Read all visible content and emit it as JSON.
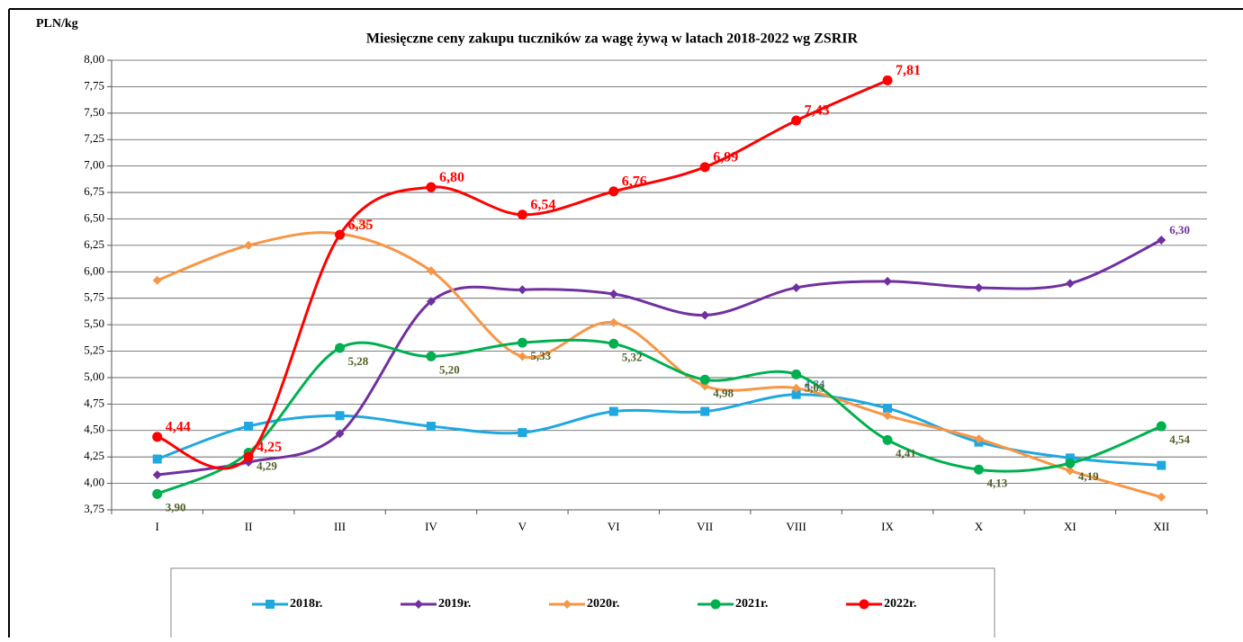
{
  "chart_data": {
    "type": "line",
    "title": "Miesięczne ceny zakupu tuczników za wagę żywą w latach 2018-2022 wg ZSRIR",
    "y_label": "PLN/kg",
    "categories": [
      "I",
      "II",
      "III",
      "IV",
      "V",
      "VI",
      "VII",
      "VIII",
      "IX",
      "X",
      "XI",
      "XII"
    ],
    "ylim": [
      3.75,
      8.0
    ],
    "yticks": [
      {
        "value": 3.75,
        "label": "3,75"
      },
      {
        "value": 4.0,
        "label": "4,00"
      },
      {
        "value": 4.25,
        "label": "4,25"
      },
      {
        "value": 4.5,
        "label": "4,50"
      },
      {
        "value": 4.75,
        "label": "4,75"
      },
      {
        "value": 5.0,
        "label": "5,00"
      },
      {
        "value": 5.25,
        "label": "5,25"
      },
      {
        "value": 5.5,
        "label": "5,50"
      },
      {
        "value": 5.75,
        "label": "5,75"
      },
      {
        "value": 6.0,
        "label": "6,00"
      },
      {
        "value": 6.25,
        "label": "6,25"
      },
      {
        "value": 6.5,
        "label": "6,50"
      },
      {
        "value": 6.75,
        "label": "6,75"
      },
      {
        "value": 7.0,
        "label": "7,00"
      },
      {
        "value": 7.25,
        "label": "7,25"
      },
      {
        "value": 7.5,
        "label": "7,50"
      },
      {
        "value": 7.75,
        "label": "7,75"
      },
      {
        "value": 8.0,
        "label": "8,00"
      }
    ],
    "grid": true,
    "legend": "bottom",
    "series": [
      {
        "name": "2018r.",
        "color": "#1fa8e0",
        "marker": "square",
        "label_color": "#4a7ebb",
        "values": [
          4.23,
          4.54,
          4.64,
          4.54,
          4.48,
          4.68,
          4.68,
          4.84,
          4.71,
          4.39,
          4.24,
          4.17
        ],
        "value_labels": [
          null,
          null,
          null,
          null,
          null,
          null,
          null,
          "4,84",
          null,
          null,
          null,
          null
        ]
      },
      {
        "name": "2019r.",
        "color": "#7030a0",
        "marker": "diamond",
        "label_color": "#7030a0",
        "values": [
          4.08,
          4.2,
          4.47,
          5.72,
          5.83,
          5.79,
          5.59,
          5.85,
          5.91,
          5.85,
          5.89,
          6.3
        ],
        "value_labels": [
          null,
          null,
          null,
          null,
          null,
          null,
          null,
          null,
          null,
          null,
          null,
          "6,30"
        ]
      },
      {
        "name": "2020r.",
        "color": "#f79646",
        "marker": "diamond",
        "label_color": "#f79646",
        "values": [
          5.92,
          6.25,
          6.36,
          6.01,
          5.2,
          5.52,
          4.92,
          4.9,
          4.64,
          4.42,
          4.12,
          3.87
        ],
        "value_labels": [
          null,
          null,
          "6,36",
          null,
          null,
          null,
          null,
          null,
          null,
          null,
          null,
          null
        ]
      },
      {
        "name": "2021r.",
        "color": "#00b050",
        "marker": "circle",
        "label_color": "#4f6228",
        "values": [
          3.9,
          4.29,
          5.28,
          5.2,
          5.33,
          5.32,
          4.98,
          5.03,
          4.41,
          4.13,
          4.19,
          4.54
        ],
        "value_labels": [
          "3,90",
          "4,29",
          "5,28",
          "5,20",
          "5,33",
          "5,32",
          "4,98",
          "5,03",
          "4,41",
          "4,13",
          "4,19",
          "4,54"
        ]
      },
      {
        "name": "2022r.",
        "color": "#ff0000",
        "marker": "circle",
        "label_color": "#ff0000",
        "values": [
          4.44,
          4.25,
          6.35,
          6.8,
          6.54,
          6.76,
          6.99,
          7.43,
          7.81,
          null,
          null,
          null
        ],
        "value_labels": [
          "4,44",
          "4,25",
          "6,35",
          "6,80",
          "6,54",
          "6,76",
          "6,99",
          "7,43",
          "7,81",
          null,
          null,
          null
        ]
      }
    ]
  }
}
